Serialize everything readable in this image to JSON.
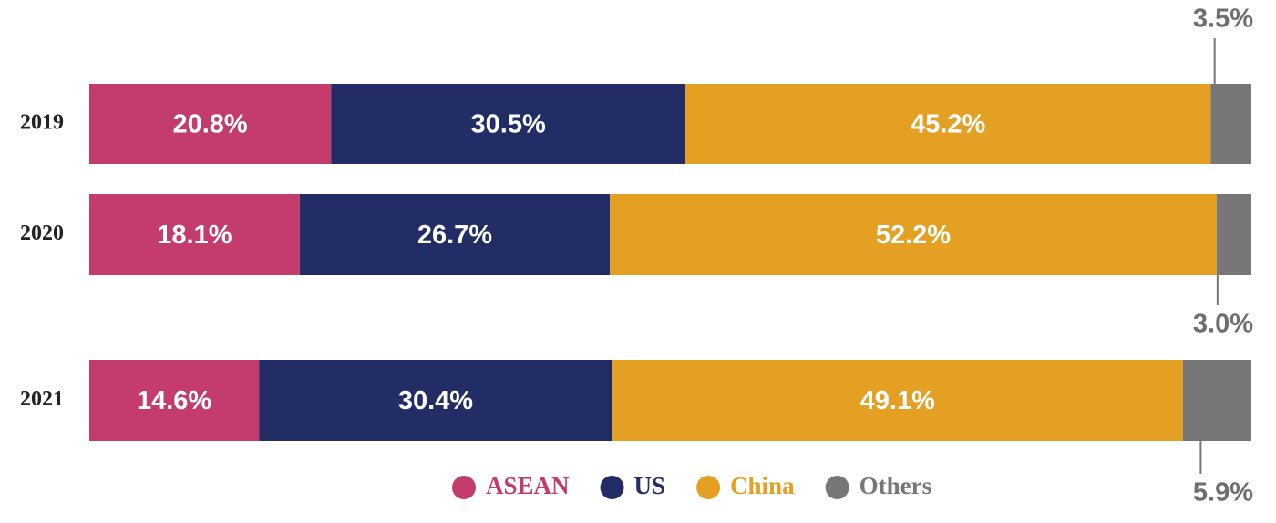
{
  "chart_data": {
    "type": "stacked-bar",
    "categories": [
      "2019",
      "2020",
      "2021"
    ],
    "series": [
      {
        "name": "ASEAN",
        "color": "#c43b6e",
        "values": [
          20.8,
          18.1,
          14.6
        ],
        "value_labels": [
          "20.8%",
          "18.1%",
          "14.6%"
        ]
      },
      {
        "name": "US",
        "color": "#222d66",
        "values": [
          30.5,
          26.7,
          30.4
        ],
        "value_labels": [
          "30.5%",
          "26.7%",
          "30.4%"
        ]
      },
      {
        "name": "China",
        "color": "#e3a023",
        "values": [
          45.2,
          52.2,
          49.1
        ],
        "value_labels": [
          "45.2%",
          "52.2%",
          "49.1%"
        ]
      },
      {
        "name": "Others",
        "color": "#777777",
        "values": [
          3.5,
          3.0,
          5.9
        ],
        "value_labels": [
          "3.5%",
          "3.0%",
          "5.9%"
        ]
      }
    ]
  }
}
